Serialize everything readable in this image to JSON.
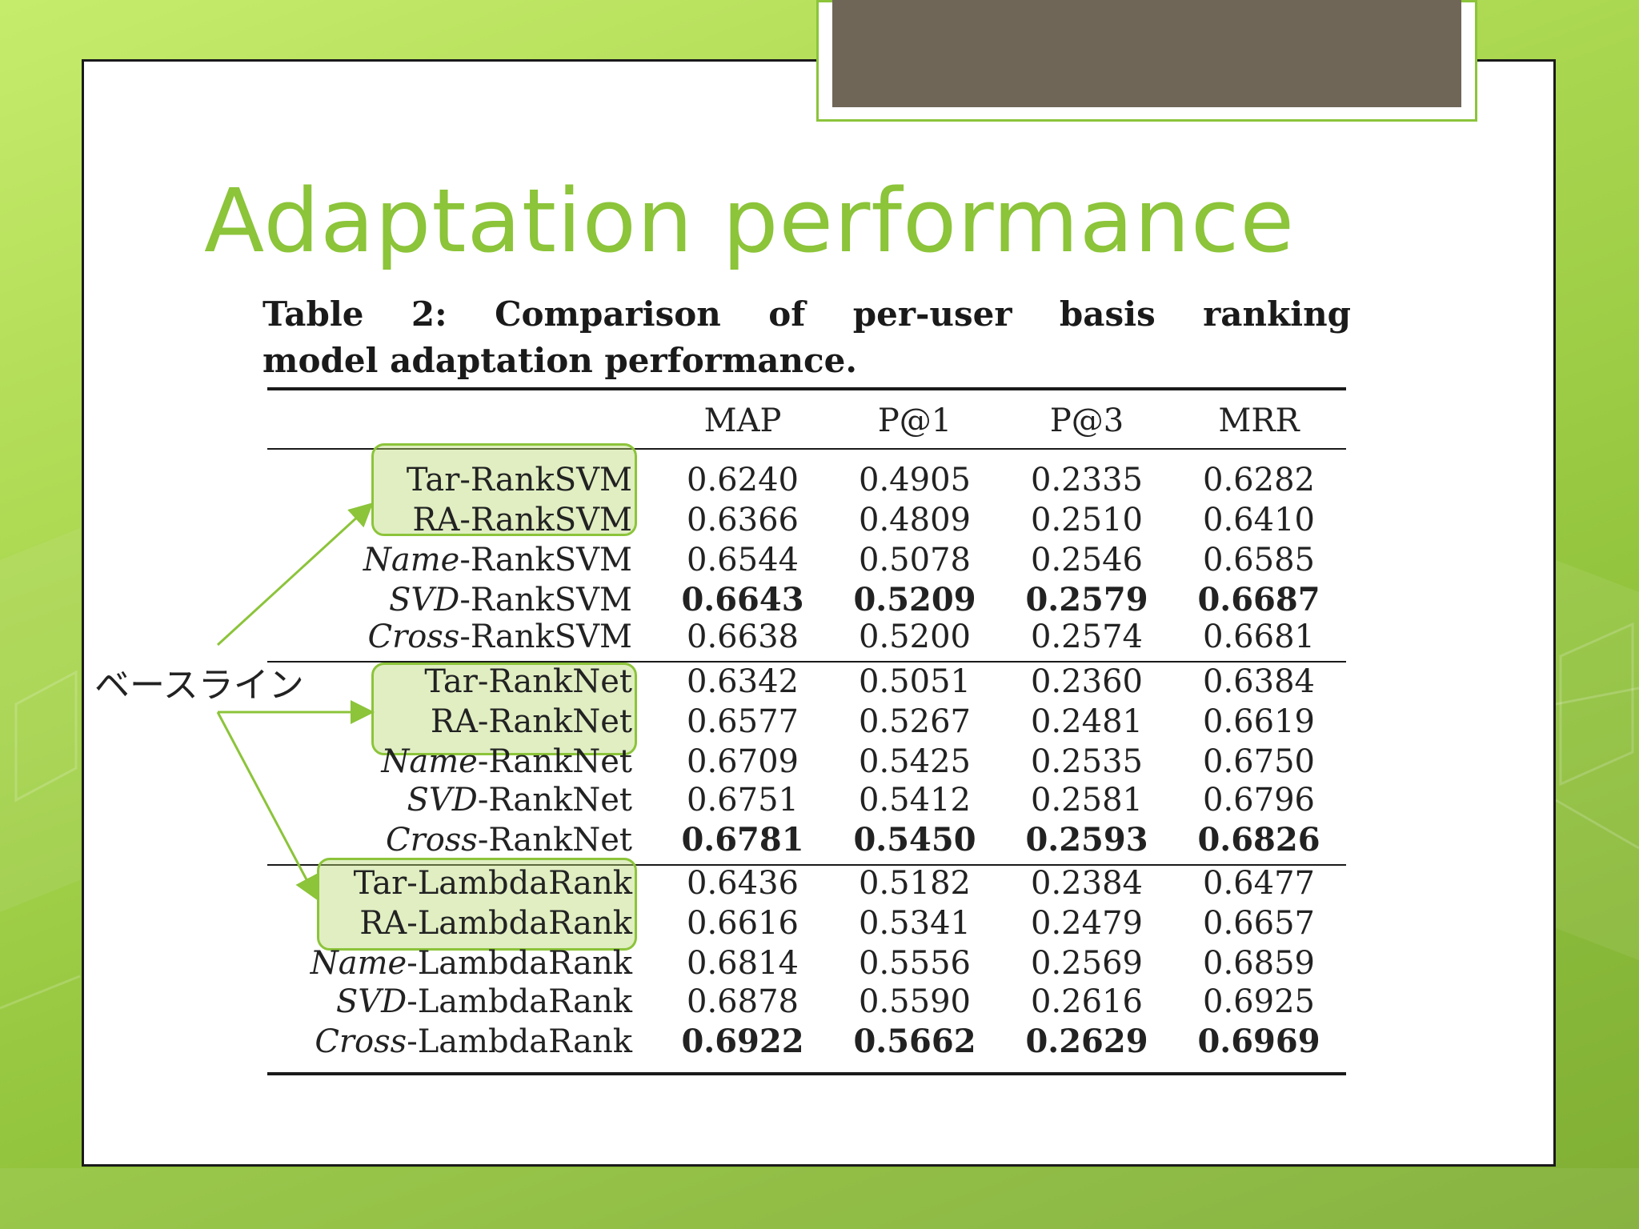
{
  "slide": {
    "title": "Adaptation performance",
    "annotation": "ベースライン",
    "colors": {
      "accent": "#8cc43a",
      "tab": "#706658"
    }
  },
  "table": {
    "caption_line1": "Table 2: Comparison of per-user basis ranking",
    "caption_line2": "model adaptation performance.",
    "columns": [
      "MAP",
      "P@1",
      "P@3",
      "MRR"
    ],
    "groups": [
      {
        "rows": [
          {
            "prefix": "",
            "suffix": "Tar-RankSVM",
            "values": [
              "0.6240",
              "0.4905",
              "0.2335",
              "0.6282"
            ],
            "bold": false,
            "highlighted": true
          },
          {
            "prefix": "",
            "suffix": "RA-RankSVM",
            "values": [
              "0.6366",
              "0.4809",
              "0.2510",
              "0.6410"
            ],
            "bold": false,
            "highlighted": true
          },
          {
            "prefix": "Name",
            "suffix": "-RankSVM",
            "values": [
              "0.6544",
              "0.5078",
              "0.2546",
              "0.6585"
            ],
            "bold": false,
            "highlighted": false
          },
          {
            "prefix": "SVD",
            "suffix": "-RankSVM",
            "values": [
              "0.6643",
              "0.5209",
              "0.2579",
              "0.6687"
            ],
            "bold": true,
            "highlighted": false
          },
          {
            "prefix": "Cross",
            "suffix": "-RankSVM",
            "values": [
              "0.6638",
              "0.5200",
              "0.2574",
              "0.6681"
            ],
            "bold": false,
            "highlighted": false
          }
        ]
      },
      {
        "rows": [
          {
            "prefix": "",
            "suffix": "Tar-RankNet",
            "values": [
              "0.6342",
              "0.5051",
              "0.2360",
              "0.6384"
            ],
            "bold": false,
            "highlighted": true
          },
          {
            "prefix": "",
            "suffix": "RA-RankNet",
            "values": [
              "0.6577",
              "0.5267",
              "0.2481",
              "0.6619"
            ],
            "bold": false,
            "highlighted": true
          },
          {
            "prefix": "Name",
            "suffix": "-RankNet",
            "values": [
              "0.6709",
              "0.5425",
              "0.2535",
              "0.6750"
            ],
            "bold": false,
            "highlighted": false
          },
          {
            "prefix": "SVD",
            "suffix": "-RankNet",
            "values": [
              "0.6751",
              "0.5412",
              "0.2581",
              "0.6796"
            ],
            "bold": false,
            "highlighted": false
          },
          {
            "prefix": "Cross",
            "suffix": "-RankNet",
            "values": [
              "0.6781",
              "0.5450",
              "0.2593",
              "0.6826"
            ],
            "bold": true,
            "highlighted": false
          }
        ]
      },
      {
        "rows": [
          {
            "prefix": "",
            "suffix": "Tar-LambdaRank",
            "values": [
              "0.6436",
              "0.5182",
              "0.2384",
              "0.6477"
            ],
            "bold": false,
            "highlighted": true
          },
          {
            "prefix": "",
            "suffix": "RA-LambdaRank",
            "values": [
              "0.6616",
              "0.5341",
              "0.2479",
              "0.6657"
            ],
            "bold": false,
            "highlighted": true
          },
          {
            "prefix": "Name",
            "suffix": "-LambdaRank",
            "values": [
              "0.6814",
              "0.5556",
              "0.2569",
              "0.6859"
            ],
            "bold": false,
            "highlighted": false
          },
          {
            "prefix": "SVD",
            "suffix": "-LambdaRank",
            "values": [
              "0.6878",
              "0.5590",
              "0.2616",
              "0.6925"
            ],
            "bold": false,
            "highlighted": false
          },
          {
            "prefix": "Cross",
            "suffix": "-LambdaRank",
            "values": [
              "0.6922",
              "0.5662",
              "0.2629",
              "0.6969"
            ],
            "bold": true,
            "highlighted": false
          }
        ]
      }
    ]
  }
}
